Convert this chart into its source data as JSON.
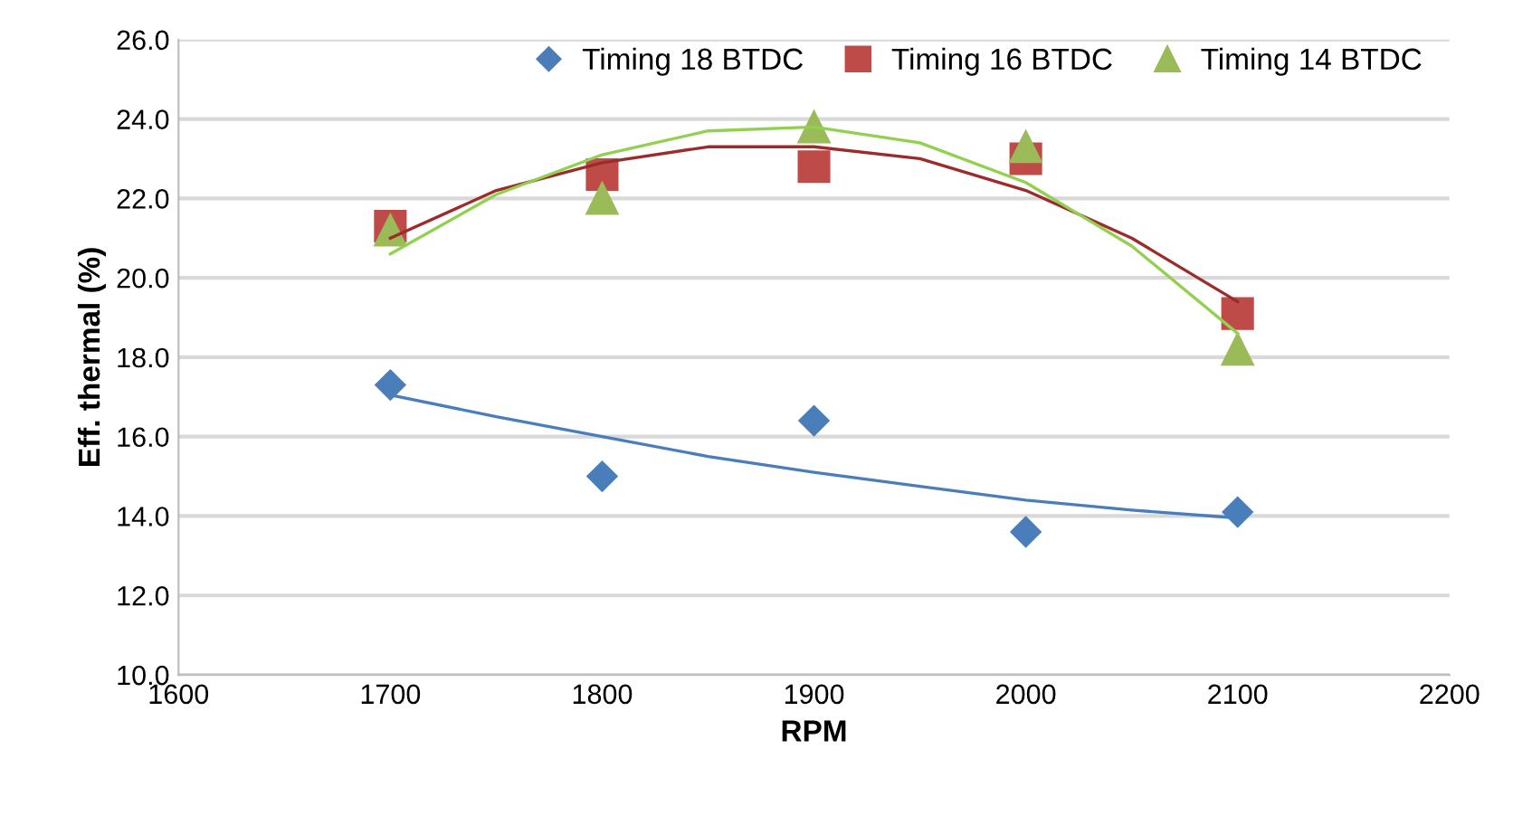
{
  "chart_data": {
    "type": "scatter",
    "xlabel": "RPM",
    "ylabel": "Eff. thermal (%)",
    "xlim": [
      1600,
      2200
    ],
    "xticks": [
      1600,
      1700,
      1800,
      1900,
      2000,
      2100,
      2200
    ],
    "ylim": [
      10,
      26
    ],
    "yticks": [
      {
        "value": 10,
        "label": "10.0"
      },
      {
        "value": 12,
        "label": "12.0"
      },
      {
        "value": 14,
        "label": "14.0"
      },
      {
        "value": 16,
        "label": "16.0"
      },
      {
        "value": 18,
        "label": "18.0"
      },
      {
        "value": 20,
        "label": "20.0"
      },
      {
        "value": 22,
        "label": "22.0"
      },
      {
        "value": 24,
        "label": "24.0"
      },
      {
        "value": 26,
        "label": "26.0"
      }
    ],
    "grid": "y",
    "legend": "top right",
    "series": [
      {
        "name": "Timing 18 BTDC",
        "color": "#4a7ebb",
        "marker": "diamond",
        "x": [
          1700,
          1800,
          1900,
          2000,
          2100
        ],
        "values": [
          17.3,
          15.0,
          16.4,
          13.6,
          14.1
        ]
      },
      {
        "name": "Timing 16 BTDC",
        "color": "#be4b48",
        "marker": "square",
        "x": [
          1700,
          1800,
          1900,
          2000,
          2100
        ],
        "values": [
          21.3,
          22.6,
          22.8,
          23.0,
          19.1
        ]
      },
      {
        "name": "Timing 14 BTDC",
        "color": "#9bbb59",
        "marker": "triangle",
        "x": [
          1700,
          1800,
          1900,
          2000,
          2100
        ],
        "values": [
          21.2,
          22.0,
          23.8,
          23.3,
          18.2
        ]
      },
      {
        "type": "line",
        "color": "#4a7ebb",
        "marker": "none",
        "x": [
          1700,
          1750,
          1800,
          1850,
          1900,
          1950,
          2000,
          2050,
          2100
        ],
        "values": [
          17.05,
          16.5,
          16.0,
          15.5,
          15.1,
          14.75,
          14.4,
          14.15,
          13.95
        ]
      },
      {
        "type": "line",
        "color": "#9c2b2b",
        "marker": "none",
        "x": [
          1700,
          1750,
          1800,
          1850,
          1900,
          1950,
          2000,
          2050,
          2100
        ],
        "values": [
          21.0,
          22.2,
          22.9,
          23.3,
          23.3,
          23.0,
          22.2,
          21.0,
          19.4
        ]
      },
      {
        "type": "line",
        "color": "#92d050",
        "marker": "none",
        "x": [
          1700,
          1750,
          1800,
          1850,
          1900,
          1950,
          2000,
          2050,
          2100
        ],
        "values": [
          20.6,
          22.1,
          23.1,
          23.7,
          23.8,
          23.4,
          22.4,
          20.8,
          18.6
        ]
      }
    ]
  }
}
